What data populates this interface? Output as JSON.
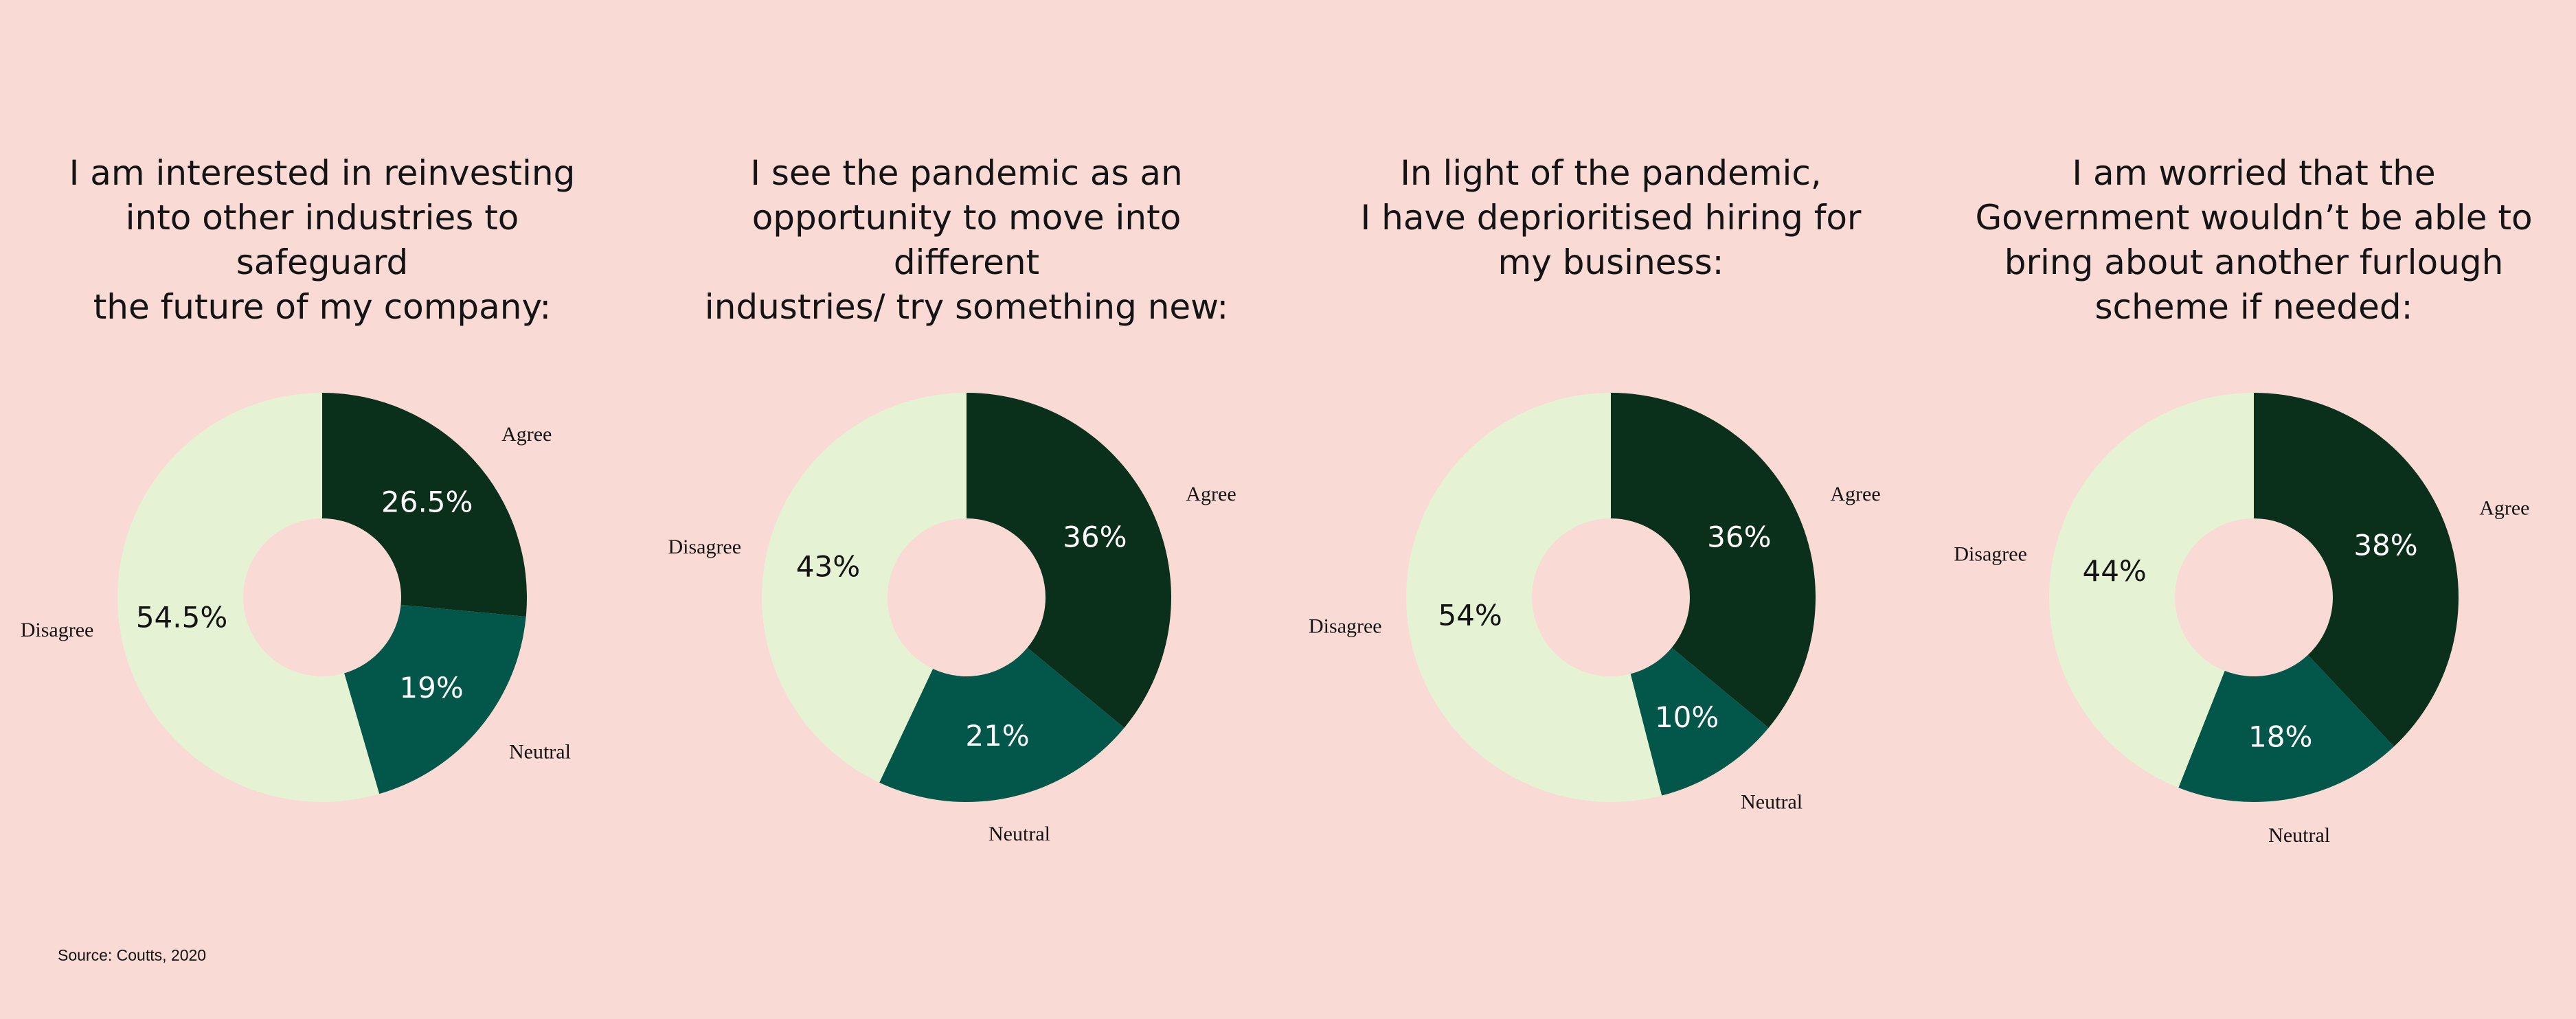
{
  "source": "Source: Coutts, 2020",
  "colors": {
    "background": "#f9dad4",
    "agree": "#0a2f1a",
    "neutral": "#02574a",
    "disagree": "#e6f2d4",
    "label_on_dark": "#ffffff",
    "label_on_light": "#141414"
  },
  "chart_data": [
    {
      "type": "pie",
      "title": "I am interested in reinvesting\ninto other industries to safeguard\nthe future of my company:",
      "categories": [
        "Agree",
        "Neutral",
        "Disagree"
      ],
      "values": [
        26.5,
        19,
        54.5
      ],
      "value_labels": [
        "26.5%",
        "19%",
        "54.5%"
      ]
    },
    {
      "type": "pie",
      "title": "I see the pandemic as an\nopportunity to move into different\nindustries/ try something new:",
      "categories": [
        "Agree",
        "Neutral",
        "Disagree"
      ],
      "values": [
        36,
        21,
        43
      ],
      "value_labels": [
        "36%",
        "21%",
        "43%"
      ]
    },
    {
      "type": "pie",
      "title": "In light of the pandemic,\nI have deprioritised hiring for\nmy business:",
      "categories": [
        "Agree",
        "Neutral",
        "Disagree"
      ],
      "values": [
        36,
        10,
        54
      ],
      "value_labels": [
        "36%",
        "10%",
        "54%"
      ]
    },
    {
      "type": "pie",
      "title": "I am worried that the\nGovernment wouldn’t be able to\nbring about another furlough\nscheme if needed:",
      "categories": [
        "Agree",
        "Neutral",
        "Disagree"
      ],
      "values": [
        38,
        18,
        44
      ],
      "value_labels": [
        "38%",
        "18%",
        "44%"
      ]
    }
  ]
}
